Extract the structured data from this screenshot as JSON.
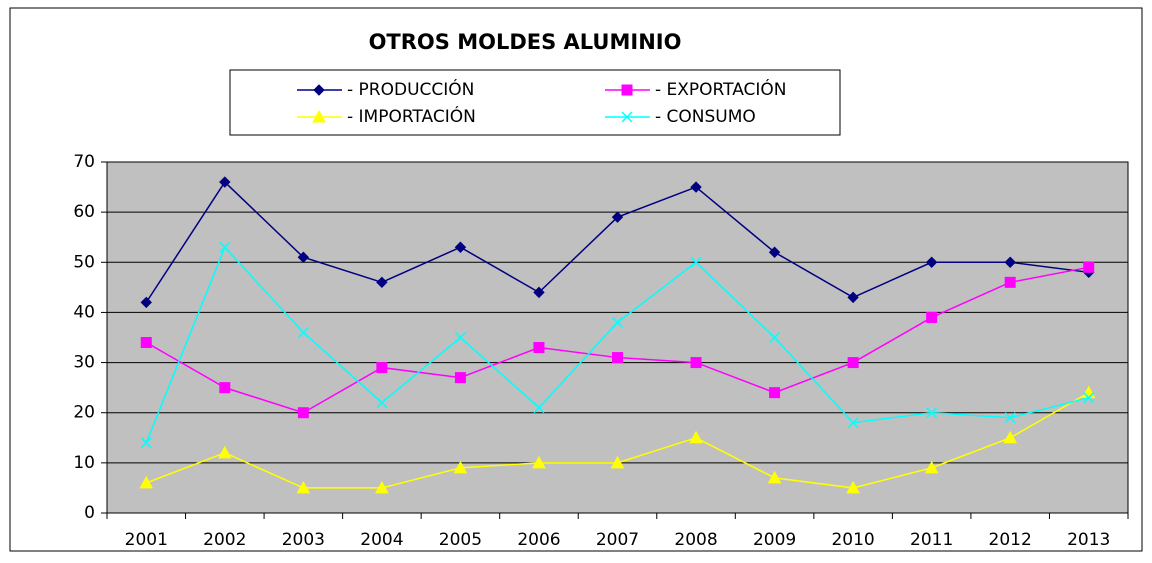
{
  "chart_data": {
    "type": "line",
    "title": "OTROS MOLDES ALUMINIO",
    "categories": [
      "2001",
      "2002",
      "2003",
      "2004",
      "2005",
      "2006",
      "2007",
      "2008",
      "2009",
      "2010",
      "2011",
      "2012",
      "2013"
    ],
    "series": [
      {
        "name": "- PRODUCCIÓN",
        "color": "#000080",
        "marker": "diamond",
        "values": [
          42,
          66,
          51,
          46,
          53,
          44,
          59,
          65,
          52,
          43,
          50,
          50,
          48
        ]
      },
      {
        "name": "- EXPORTACIÓN",
        "color": "#ff00ff",
        "marker": "square",
        "values": [
          34,
          25,
          20,
          29,
          27,
          33,
          31,
          30,
          24,
          30,
          39,
          46,
          49
        ]
      },
      {
        "name": "- IMPORTACIÓN",
        "color": "#ffff00",
        "marker": "triangle",
        "values": [
          6,
          12,
          5,
          5,
          9,
          10,
          10,
          15,
          7,
          5,
          9,
          15,
          24
        ]
      },
      {
        "name": "- CONSUMO",
        "color": "#00ffff",
        "marker": "x",
        "values": [
          14,
          53,
          36,
          22,
          35,
          21,
          38,
          50,
          35,
          18,
          20,
          19,
          23
        ]
      }
    ],
    "ylim": [
      0,
      70
    ],
    "yticks": [
      0,
      10,
      20,
      30,
      40,
      50,
      60,
      70
    ],
    "grid": true
  }
}
